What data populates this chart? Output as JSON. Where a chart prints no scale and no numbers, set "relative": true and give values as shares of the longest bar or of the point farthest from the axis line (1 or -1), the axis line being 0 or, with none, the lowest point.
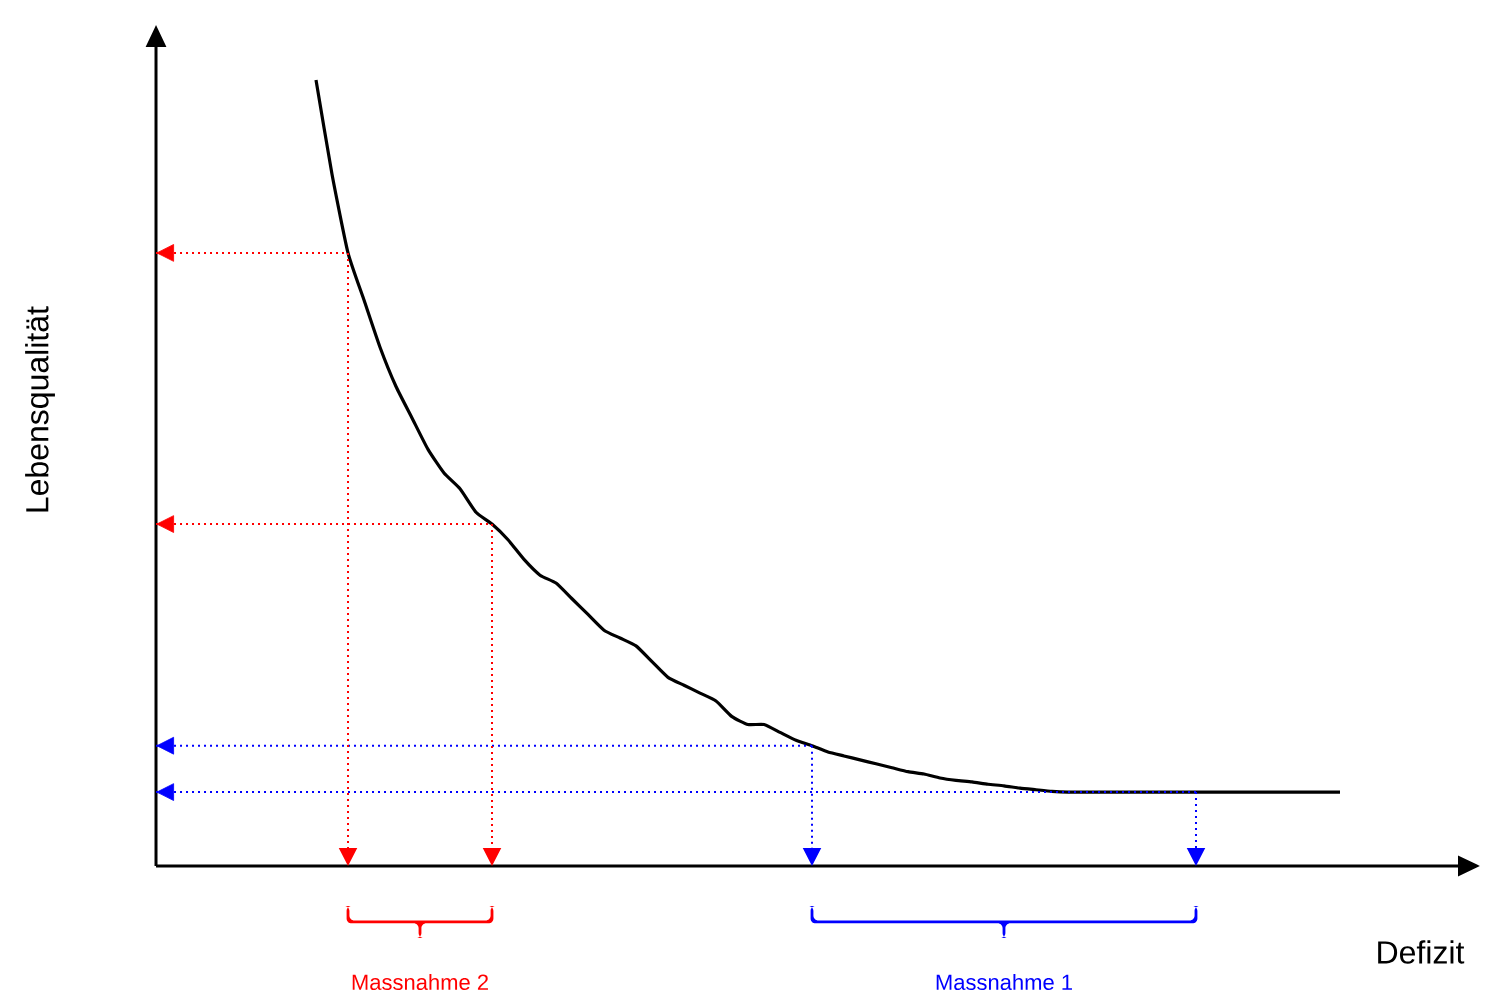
{
  "chart_data": {
    "type": "line",
    "relative": true,
    "xlabel": "Defizit",
    "ylabel": "Lebensqualität",
    "categories": [
      null,
      null,
      null,
      null,
      null,
      null,
      null,
      null,
      null,
      null,
      null,
      null,
      null,
      null,
      null,
      null,
      null,
      null,
      null,
      null,
      null,
      null,
      null,
      null,
      null,
      null,
      null,
      null,
      null,
      null,
      null,
      null,
      null,
      null,
      null,
      null,
      null,
      null,
      null,
      null,
      null,
      null,
      null,
      null,
      null,
      null,
      null,
      null,
      null,
      null,
      null,
      null,
      null,
      null,
      null,
      null,
      null,
      null,
      null,
      null,
      null,
      null,
      null,
      null,
      null,
      null,
      null,
      null,
      null,
      null,
      null,
      null,
      null,
      null,
      null,
      null,
      null,
      null,
      null,
      null,
      null,
      null,
      null
    ],
    "series": [
      {
        "color": "#000000",
        "line_style": "solid",
        "values": [
          null,
          null,
          null,
          null,
          null,
          null,
          null,
          null,
          null,
          null,
          1,
          0.88,
          0.78,
          0.72,
          0.66,
          0.61,
          0.57,
          0.53,
          0.5,
          0.48,
          0.45,
          0.435,
          0.415,
          0.39,
          0.37,
          0.36,
          0.34,
          0.32,
          0.3,
          0.29,
          0.28,
          0.26,
          0.24,
          0.23,
          0.22,
          0.21,
          0.19,
          0.18,
          0.18,
          0.17,
          0.16,
          0.153,
          0.145,
          0.14,
          0.135,
          0.13,
          0.125,
          0.12,
          0.117,
          0.112,
          0.109,
          0.107,
          0.104,
          0.102,
          0.099,
          0.097,
          0.095,
          0.094,
          0.094,
          0.094,
          0.094,
          0.094,
          0.094,
          0.094,
          0.094,
          0.094,
          0.094,
          0.094,
          0.094,
          0.094,
          0.094,
          0.094,
          0.094,
          0.094,
          0.094,
          null,
          null,
          null,
          null,
          null,
          null,
          null,
          null
        ]
      },
      {
        "color": "#ff0000",
        "line_style": "dotted",
        "values": [
          0.78,
          0.78,
          0.78,
          0.78,
          0.78,
          0.78,
          0.78,
          0.78,
          0.78,
          0.78,
          0.78,
          0.78,
          0.78,
          null,
          null,
          null,
          null,
          null,
          null,
          null,
          null,
          null,
          null,
          null,
          null,
          null,
          null,
          null,
          null,
          null,
          null,
          null,
          null,
          null,
          null,
          null,
          null,
          null,
          null,
          null,
          null,
          null,
          null,
          null,
          null,
          null,
          null,
          null,
          null,
          null,
          null,
          null,
          null,
          null,
          null,
          null,
          null,
          null,
          null,
          null,
          null,
          null,
          null,
          null,
          null,
          null,
          null,
          null,
          null,
          null,
          null,
          null,
          null,
          null,
          null,
          null,
          null,
          null,
          null,
          null,
          null,
          null,
          null
        ]
      },
      {
        "color": "#ff0000",
        "line_style": "dotted",
        "values": [
          0.435,
          0.435,
          0.435,
          0.435,
          0.435,
          0.435,
          0.435,
          0.435,
          0.435,
          0.435,
          0.435,
          0.435,
          0.435,
          0.435,
          0.435,
          0.435,
          0.435,
          0.435,
          0.435,
          0.435,
          0.435,
          0.435,
          null,
          null,
          null,
          null,
          null,
          null,
          null,
          null,
          null,
          null,
          null,
          null,
          null,
          null,
          null,
          null,
          null,
          null,
          null,
          null,
          null,
          null,
          null,
          null,
          null,
          null,
          null,
          null,
          null,
          null,
          null,
          null,
          null,
          null,
          null,
          null,
          null,
          null,
          null,
          null,
          null,
          null,
          null,
          null,
          null,
          null,
          null,
          null,
          null,
          null,
          null,
          null,
          null,
          null,
          null,
          null,
          null,
          null,
          null,
          null,
          null
        ]
      },
      {
        "color": "#0000ff",
        "line_style": "dotted",
        "values": [
          0.153,
          0.153,
          0.153,
          0.153,
          0.153,
          0.153,
          0.153,
          0.153,
          0.153,
          0.153,
          0.153,
          0.153,
          0.153,
          0.153,
          0.153,
          0.153,
          0.153,
          0.153,
          0.153,
          0.153,
          0.153,
          0.153,
          0.153,
          0.153,
          0.153,
          0.153,
          0.153,
          0.153,
          0.153,
          0.153,
          0.153,
          0.153,
          0.153,
          0.153,
          0.153,
          0.153,
          0.153,
          0.153,
          0.153,
          0.153,
          0.153,
          0.153,
          null,
          null,
          null,
          null,
          null,
          null,
          null,
          null,
          null,
          null,
          null,
          null,
          null,
          null,
          null,
          null,
          null,
          null,
          null,
          null,
          null,
          null,
          null,
          null,
          null,
          null,
          null,
          null,
          null,
          null,
          null,
          null,
          null,
          null,
          null,
          null,
          null,
          null,
          null,
          null,
          null
        ]
      },
      {
        "color": "#0000ff",
        "line_style": "dotted",
        "values": [
          0.094,
          0.094,
          0.094,
          0.094,
          0.094,
          0.094,
          0.094,
          0.094,
          0.094,
          0.094,
          0.094,
          0.094,
          0.094,
          0.094,
          0.094,
          0.094,
          0.094,
          0.094,
          0.094,
          0.094,
          0.094,
          0.094,
          0.094,
          0.094,
          0.094,
          0.094,
          0.094,
          0.094,
          0.094,
          0.094,
          0.094,
          0.094,
          0.094,
          0.094,
          0.094,
          0.094,
          0.094,
          0.094,
          0.094,
          0.094,
          0.094,
          0.094,
          0.094,
          0.094,
          0.094,
          0.094,
          0.094,
          0.094,
          0.094,
          0.094,
          0.094,
          0.094,
          0.094,
          0.094,
          0.094,
          0.094,
          0.094,
          0.094,
          0.094,
          0.094,
          0.094,
          0.094,
          0.094,
          0.094,
          0.094,
          0.094,
          null,
          null,
          null,
          null,
          null,
          null,
          null,
          null,
          null,
          null,
          null,
          null,
          null,
          null,
          null,
          null,
          null
        ]
      }
    ],
    "annotations": [
      "Massnahme 2",
      "Massnahme 1"
    ]
  }
}
